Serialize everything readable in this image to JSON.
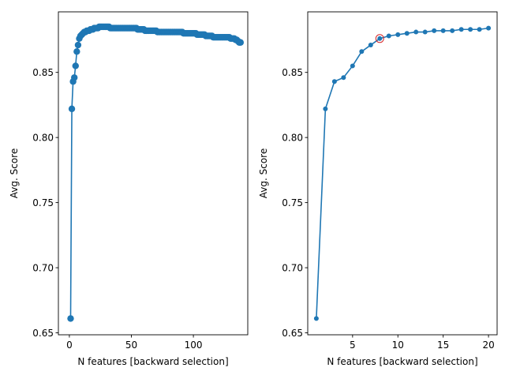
{
  "chart_data": [
    {
      "type": "line",
      "xlabel": "N features [backward selection]",
      "ylabel": "Avg. Score",
      "xlim": [
        -8.85,
        143.85
      ],
      "ylim": [
        0.6485,
        0.8965
      ],
      "xticks": [
        0,
        50,
        100
      ],
      "yticks": [
        0.65,
        0.7,
        0.75,
        0.8,
        0.85
      ],
      "ytick_labels": [
        "0.65",
        "0.70",
        "0.75",
        "0.80",
        "0.85"
      ],
      "grid": false,
      "color": "#1f77b4",
      "series": [
        {
          "x": [
            1,
            2,
            3,
            4,
            5,
            6,
            7,
            8,
            9,
            10,
            11,
            12,
            13,
            14,
            15,
            16,
            17,
            18,
            19,
            20,
            21,
            22,
            23,
            24,
            25,
            26,
            27,
            28,
            29,
            30,
            31,
            32,
            33,
            34,
            35,
            36,
            37,
            38,
            39,
            40,
            41,
            42,
            43,
            44,
            45,
            46,
            47,
            48,
            49,
            50,
            51,
            52,
            53,
            54,
            55,
            56,
            57,
            58,
            59,
            60,
            61,
            62,
            63,
            64,
            65,
            66,
            67,
            68,
            69,
            70,
            71,
            72,
            73,
            74,
            75,
            76,
            77,
            78,
            79,
            80,
            81,
            82,
            83,
            84,
            85,
            86,
            87,
            88,
            89,
            90,
            91,
            92,
            93,
            94,
            95,
            96,
            97,
            98,
            99,
            100,
            101,
            102,
            103,
            104,
            105,
            106,
            107,
            108,
            109,
            110,
            111,
            112,
            113,
            114,
            115,
            116,
            117,
            118,
            119,
            120,
            121,
            122,
            123,
            124,
            125,
            126,
            127,
            128,
            129,
            130,
            131,
            132,
            133,
            134,
            135,
            136,
            137,
            138
          ],
          "y": [
            0.661,
            0.822,
            0.843,
            0.846,
            0.855,
            0.866,
            0.871,
            0.876,
            0.878,
            0.879,
            0.88,
            0.881,
            0.881,
            0.882,
            0.882,
            0.882,
            0.883,
            0.883,
            0.883,
            0.884,
            0.884,
            0.884,
            0.884,
            0.885,
            0.885,
            0.885,
            0.885,
            0.885,
            0.885,
            0.885,
            0.885,
            0.885,
            0.884,
            0.884,
            0.884,
            0.884,
            0.884,
            0.884,
            0.884,
            0.884,
            0.884,
            0.884,
            0.884,
            0.884,
            0.884,
            0.884,
            0.884,
            0.884,
            0.884,
            0.884,
            0.884,
            0.884,
            0.884,
            0.884,
            0.883,
            0.883,
            0.883,
            0.883,
            0.883,
            0.883,
            0.882,
            0.882,
            0.882,
            0.882,
            0.882,
            0.882,
            0.882,
            0.882,
            0.882,
            0.882,
            0.881,
            0.881,
            0.881,
            0.881,
            0.881,
            0.881,
            0.881,
            0.881,
            0.881,
            0.881,
            0.881,
            0.881,
            0.881,
            0.881,
            0.881,
            0.881,
            0.881,
            0.881,
            0.881,
            0.881,
            0.881,
            0.88,
            0.88,
            0.88,
            0.88,
            0.88,
            0.88,
            0.88,
            0.88,
            0.88,
            0.88,
            0.88,
            0.879,
            0.879,
            0.879,
            0.879,
            0.879,
            0.879,
            0.879,
            0.878,
            0.878,
            0.878,
            0.878,
            0.878,
            0.878,
            0.877,
            0.877,
            0.877,
            0.877,
            0.877,
            0.877,
            0.877,
            0.877,
            0.877,
            0.877,
            0.877,
            0.877,
            0.877,
            0.877,
            0.876,
            0.876,
            0.876,
            0.876,
            0.875,
            0.875,
            0.874,
            0.873,
            0.873
          ]
        }
      ]
    },
    {
      "type": "line",
      "xlabel": "N features [backward selection]",
      "ylabel": "Avg. Score",
      "xlim": [
        0.05,
        20.95
      ],
      "ylim": [
        0.6485,
        0.8965
      ],
      "xticks": [
        5,
        10,
        15,
        20
      ],
      "yticks": [
        0.65,
        0.7,
        0.75,
        0.8,
        0.85
      ],
      "ytick_labels": [
        "0.65",
        "0.70",
        "0.75",
        "0.80",
        "0.85"
      ],
      "grid": false,
      "color": "#1f77b4",
      "highlight": {
        "x": 8,
        "y": 0.876,
        "color": "#d62728"
      },
      "series": [
        {
          "x": [
            1,
            2,
            3,
            4,
            5,
            6,
            7,
            8,
            9,
            10,
            11,
            12,
            13,
            14,
            15,
            16,
            17,
            18,
            19,
            20
          ],
          "y": [
            0.661,
            0.822,
            0.843,
            0.846,
            0.855,
            0.866,
            0.871,
            0.876,
            0.878,
            0.879,
            0.88,
            0.881,
            0.881,
            0.882,
            0.882,
            0.882,
            0.883,
            0.883,
            0.883,
            0.884
          ]
        }
      ]
    }
  ]
}
